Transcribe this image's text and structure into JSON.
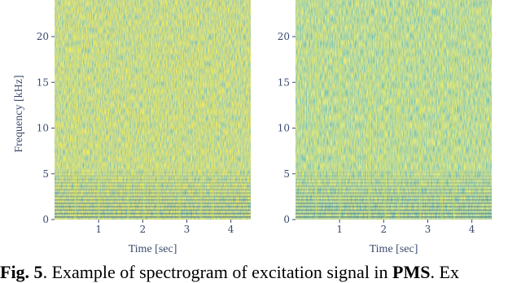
{
  "chart_data": [
    {
      "type": "heatmap",
      "x_label": "Time [sec]",
      "y_label": "Frequency [kHz]",
      "xlim": [
        0,
        4.45
      ],
      "ylim": [
        0,
        24
      ],
      "xticks": [
        1,
        2,
        3,
        4
      ],
      "yticks": [
        0,
        5,
        10,
        15,
        20
      ]
    },
    {
      "type": "heatmap",
      "x_label": "Time [sec]",
      "xlim": [
        0,
        4.45
      ],
      "ylim": [
        0,
        24
      ],
      "xticks": [
        1,
        2,
        3,
        4
      ],
      "yticks": [
        0,
        5,
        10,
        15,
        20
      ]
    }
  ],
  "caption": [
    {
      "text": "Fig. 5",
      "bold": true
    },
    {
      "text": ". Example of spectrogram of excitation signal in ",
      "bold": false
    },
    {
      "text": "PMS",
      "bold": true
    },
    {
      "text": ". Ex",
      "bold": false
    }
  ]
}
